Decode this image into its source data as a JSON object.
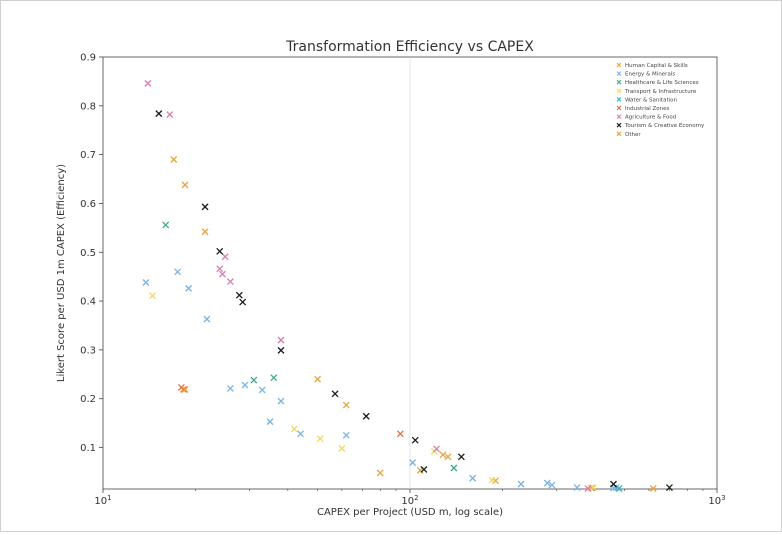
{
  "chart_data": {
    "type": "scatter",
    "title": "Transformation Efficiency vs CAPEX",
    "xlabel": "CAPEX per Project (USD m, log scale)",
    "ylabel": "Likert Score per USD 1m CAPEX (Efficiency)",
    "x_scale": "log",
    "xlim": [
      10,
      1000
    ],
    "ylim": [
      0.015,
      0.9
    ],
    "x_ticks": [
      {
        "value": 10,
        "base": "10",
        "exp": "1"
      },
      {
        "value": 100,
        "base": "10",
        "exp": "2"
      },
      {
        "value": 1000,
        "base": "10",
        "exp": "3"
      }
    ],
    "y_ticks": [
      "0.1",
      "0.2",
      "0.3",
      "0.4",
      "0.5",
      "0.6",
      "0.7",
      "0.8",
      "0.9"
    ],
    "grid": "vertical line at 100",
    "legend_position": "top-right",
    "marker": "x",
    "series": [
      {
        "name": "Human Capital & Skills",
        "color": "#e8a33d",
        "points": [
          [
            17.0,
            0.69
          ],
          [
            18.5,
            0.638
          ],
          [
            21.5,
            0.542
          ],
          [
            50,
            0.24
          ],
          [
            62,
            0.187
          ],
          [
            80,
            0.048
          ],
          [
            108,
            0.053
          ],
          [
            128,
            0.085
          ],
          [
            133,
            0.081
          ],
          [
            190,
            0.032
          ],
          [
            390,
            0.017
          ]
        ]
      },
      {
        "name": "Energy & Minerals",
        "color": "#79b3e6",
        "points": [
          [
            13.8,
            0.438
          ],
          [
            17.5,
            0.46
          ],
          [
            19,
            0.426
          ],
          [
            21.8,
            0.363
          ],
          [
            26,
            0.221
          ],
          [
            29,
            0.228
          ],
          [
            33,
            0.218
          ],
          [
            35,
            0.153
          ],
          [
            38,
            0.195
          ],
          [
            44,
            0.128
          ],
          [
            62,
            0.125
          ],
          [
            102,
            0.069
          ],
          [
            160,
            0.037
          ],
          [
            230,
            0.025
          ],
          [
            280,
            0.027
          ],
          [
            290,
            0.023
          ],
          [
            350,
            0.018
          ],
          [
            460,
            0.017
          ],
          [
            470,
            0.018
          ]
        ]
      },
      {
        "name": "Healthcare & Life Sciences",
        "color": "#3ea88b",
        "points": [
          [
            16,
            0.556
          ],
          [
            31,
            0.238
          ],
          [
            36,
            0.243
          ],
          [
            139,
            0.058
          ]
        ]
      },
      {
        "name": "Transport & Infrastructure",
        "color": "#f2d85a",
        "points": [
          [
            14.5,
            0.411
          ],
          [
            42,
            0.138
          ],
          [
            51,
            0.118
          ],
          [
            60,
            0.098
          ],
          [
            120,
            0.092
          ],
          [
            185,
            0.033
          ],
          [
            395,
            0.018
          ]
        ]
      },
      {
        "name": "Water & Sanitation",
        "color": "#2bb3c0",
        "points": [
          [
            480,
            0.016
          ]
        ]
      },
      {
        "name": "Industrial Zones",
        "color": "#e06e44",
        "points": [
          [
            18,
            0.223
          ],
          [
            18.3,
            0.219
          ],
          [
            93,
            0.128
          ]
        ]
      },
      {
        "name": "Agriculture & Food",
        "color": "#d97bb0",
        "points": [
          [
            14,
            0.846
          ],
          [
            16.5,
            0.782
          ],
          [
            24,
            0.466
          ],
          [
            25,
            0.491
          ],
          [
            24.5,
            0.455
          ],
          [
            26,
            0.44
          ],
          [
            38,
            0.32
          ],
          [
            122,
            0.097
          ],
          [
            380,
            0.016
          ]
        ]
      },
      {
        "name": "Tourism & Creative Economy",
        "color": "#1a1a1a",
        "points": [
          [
            15.2,
            0.784
          ],
          [
            21.5,
            0.593
          ],
          [
            24,
            0.502
          ],
          [
            27.8,
            0.412
          ],
          [
            28.5,
            0.398
          ],
          [
            38,
            0.299
          ],
          [
            57,
            0.21
          ],
          [
            72,
            0.164
          ],
          [
            104,
            0.115
          ],
          [
            111,
            0.055
          ],
          [
            147,
            0.081
          ],
          [
            460,
            0.025
          ],
          [
            700,
            0.018
          ]
        ]
      },
      {
        "name": "Other",
        "color": "#f0a030",
        "points": [
          [
            18.5,
            0.219
          ],
          [
            620,
            0.016
          ]
        ]
      }
    ]
  }
}
